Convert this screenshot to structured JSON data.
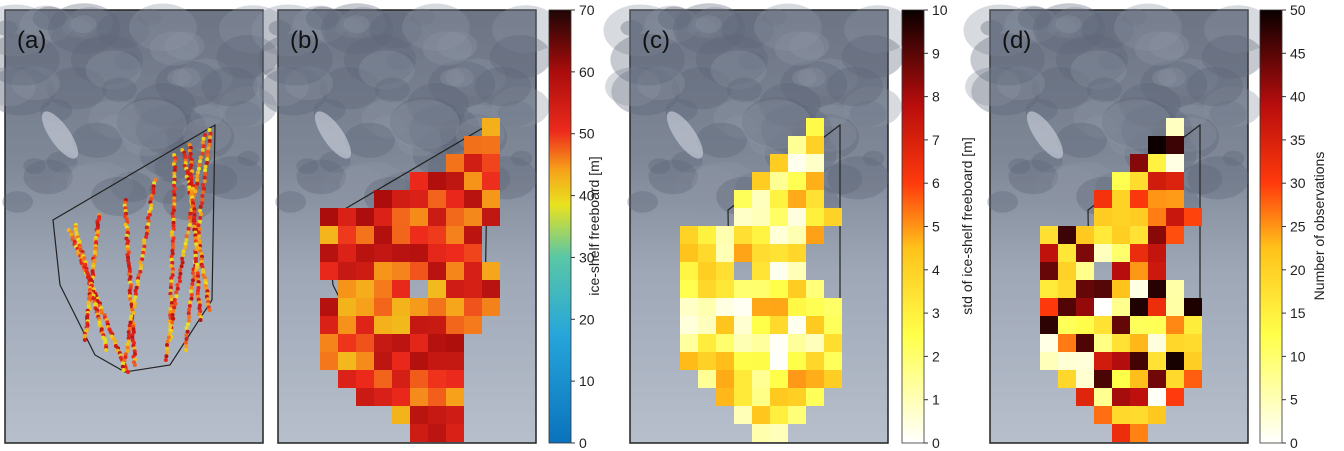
{
  "figure": {
    "panels": [
      {
        "label": "(a)"
      },
      {
        "label": "(b)"
      },
      {
        "label": "(c)"
      },
      {
        "label": "(d)"
      }
    ],
    "colorbars": [
      {
        "label": "ice-shelf freeboard [m]",
        "ticks": [
          "0",
          "10",
          "20",
          "30",
          "40",
          "50",
          "60",
          "70"
        ]
      },
      {
        "label": "std of ice-shelf freeboard [m]",
        "ticks": [
          "0",
          "1",
          "2",
          "3",
          "4",
          "5",
          "6",
          "7",
          "8",
          "9",
          "10"
        ]
      },
      {
        "label": "Number of observations",
        "ticks": [
          "0",
          "5",
          "10",
          "15",
          "20",
          "25",
          "30",
          "35",
          "40",
          "45",
          "50"
        ]
      }
    ]
  },
  "chart_data": [
    {
      "type": "scatter",
      "label": "(a)",
      "ylabel": "",
      "colorscale": "parula-like (blue-green-yellow-red-black)",
      "color_range": [
        0,
        70
      ]
    },
    {
      "type": "heatmap",
      "label": "(b)",
      "colorbar_label": "ice-shelf freeboard [m]",
      "color_range": [
        0,
        70
      ],
      "colorscale": "parula-like (blue-green-yellow-red-black)"
    },
    {
      "type": "heatmap",
      "label": "(c)",
      "colorbar_label": "std of ice-shelf freeboard [m]",
      "color_range": [
        0,
        10
      ],
      "colorscale": "hot (white-yellow-red-black)"
    },
    {
      "type": "heatmap",
      "label": "(d)",
      "colorbar_label": "Number of observations",
      "color_range": [
        0,
        50
      ],
      "colorscale": "hot (white-yellow-red-black)"
    }
  ]
}
